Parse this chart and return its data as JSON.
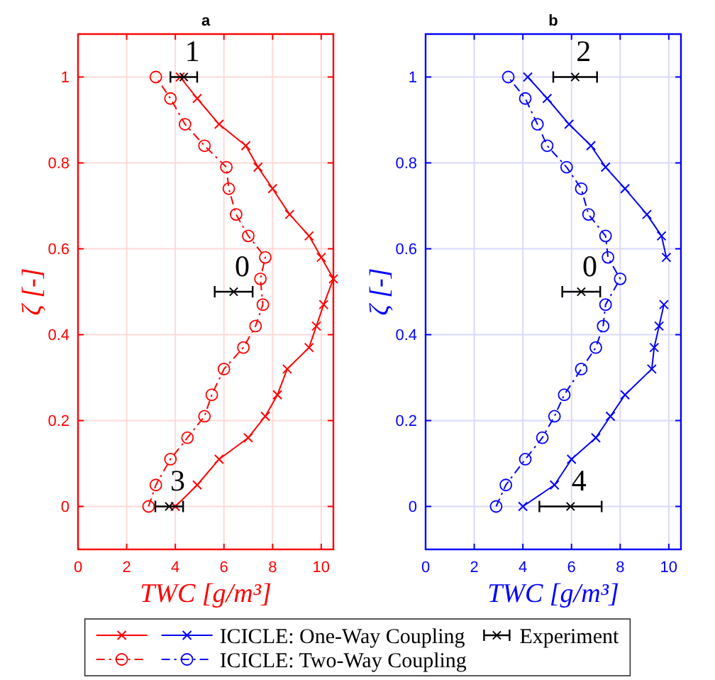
{
  "chart_data": [
    {
      "type": "line",
      "title": "a",
      "xlabel": "TWC [g/m³]",
      "ylabel": "ζ [-]",
      "xlim": [
        0,
        10.5
      ],
      "xticks": [
        0,
        2,
        4,
        6,
        8,
        10
      ],
      "ylim": [
        -0.1,
        1.1
      ],
      "yticks": [
        0,
        0.2,
        0.4,
        0.6,
        0.8,
        1
      ],
      "grid": true,
      "legend": "bottom",
      "series": [
        {
          "type": "line",
          "color": "#ff0000",
          "marker": "cross",
          "line_style": "solid",
          "x": [
            4.0,
            4.9,
            5.8,
            7.0,
            7.7,
            8.2,
            8.6,
            9.5,
            9.8,
            10.1,
            10.5,
            10.0,
            9.5,
            8.7,
            8.0,
            7.4,
            6.9,
            5.8,
            4.9,
            4.2
          ],
          "values": [
            0,
            0.05,
            0.11,
            0.16,
            0.21,
            0.26,
            0.32,
            0.37,
            0.42,
            0.47,
            0.53,
            0.58,
            0.63,
            0.68,
            0.74,
            0.79,
            0.84,
            0.89,
            0.95,
            1
          ]
        },
        {
          "type": "line",
          "color": "#ff0000",
          "marker": "circle",
          "line_style": "dashed",
          "x": [
            2.9,
            3.2,
            3.8,
            4.5,
            5.2,
            5.5,
            6.0,
            6.8,
            7.3,
            7.6,
            7.5,
            7.7,
            7.0,
            6.5,
            6.2,
            6.1,
            5.2,
            4.4,
            3.8,
            3.2
          ],
          "values": [
            0,
            0.05,
            0.11,
            0.16,
            0.21,
            0.26,
            0.32,
            0.37,
            0.42,
            0.47,
            0.53,
            0.58,
            0.63,
            0.68,
            0.74,
            0.79,
            0.84,
            0.89,
            0.95,
            1
          ]
        },
        {
          "type": "scatter",
          "color": "#000000",
          "marker": "cross",
          "x": [
            3.75,
            6.4,
            4.35
          ],
          "values": [
            0,
            0.5,
            1
          ],
          "xerrors": [
            0.57,
            0.78,
            0.55
          ]
        }
      ],
      "annotations": [
        {
          "text": "3",
          "x": 3.75,
          "y": 0
        },
        {
          "text": "0",
          "x": 6.4,
          "y": 0.5
        },
        {
          "text": "1",
          "x": 4.35,
          "y": 1
        }
      ]
    },
    {
      "type": "line",
      "title": "b",
      "xlabel": "TWC [g/m³]",
      "ylabel": "ζ [-]",
      "xlim": [
        0,
        10.5
      ],
      "xticks": [
        0,
        2,
        4,
        6,
        8,
        10
      ],
      "ylim": [
        -0.1,
        1.1
      ],
      "yticks": [
        0,
        0.2,
        0.4,
        0.6,
        0.8,
        1
      ],
      "grid": true,
      "legend": "bottom",
      "series": [
        {
          "name": "ICICLE: One-Way Coupling",
          "type": "line",
          "color": "#0000ff",
          "marker": "cross",
          "line_style": "solid",
          "x": [
            4.0,
            5.3,
            6.0,
            7.0,
            7.6,
            8.2,
            9.3,
            9.4,
            9.6,
            9.8,
            null,
            9.9,
            9.7,
            9.1,
            8.2,
            7.4,
            6.8,
            5.9,
            5.0,
            4.2
          ],
          "values": [
            0,
            0.05,
            0.11,
            0.16,
            0.21,
            0.26,
            0.32,
            0.37,
            0.42,
            0.47,
            null,
            0.58,
            0.63,
            0.68,
            0.74,
            0.79,
            0.84,
            0.89,
            0.95,
            1
          ]
        },
        {
          "name": "ICICLE: Two-Way Coupling",
          "type": "line",
          "color": "#0000ff",
          "marker": "circle",
          "line_style": "dashed",
          "x": [
            2.9,
            3.3,
            4.1,
            4.8,
            5.3,
            5.7,
            6.4,
            7.0,
            7.3,
            7.4,
            8.0,
            7.5,
            7.4,
            6.7,
            6.4,
            5.8,
            5.0,
            4.6,
            4.1,
            3.4
          ],
          "values": [
            0,
            0.05,
            0.11,
            0.16,
            0.21,
            0.26,
            0.32,
            0.37,
            0.42,
            0.47,
            0.53,
            0.58,
            0.63,
            0.68,
            0.74,
            0.79,
            0.84,
            0.89,
            0.95,
            1
          ]
        },
        {
          "name": "Experiment",
          "type": "scatter",
          "color": "#000000",
          "marker": "cross",
          "x": [
            5.96,
            6.4,
            6.15
          ],
          "values": [
            0,
            0.5,
            1
          ],
          "xerrors": [
            1.28,
            0.78,
            0.9
          ]
        }
      ],
      "annotations": [
        {
          "text": "4",
          "x": 5.96,
          "y": 0
        },
        {
          "text": "0",
          "x": 6.4,
          "y": 0.5
        },
        {
          "text": "2",
          "x": 6.15,
          "y": 1
        }
      ]
    }
  ]
}
